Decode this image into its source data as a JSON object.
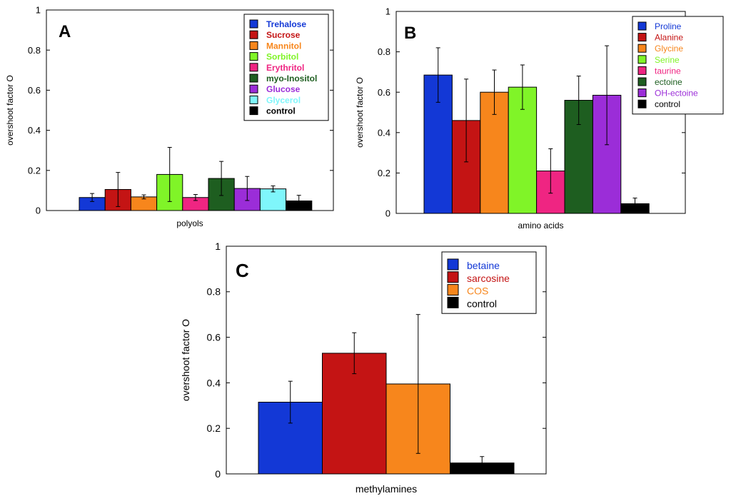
{
  "chart_data": [
    {
      "type": "bar",
      "panel": "A",
      "title": "",
      "xlabel": "polyols",
      "ylabel": "overshoot factor O",
      "ylim": [
        0,
        1
      ],
      "yticks": [
        "0",
        "0.2",
        "0.4",
        "0.6",
        "0.8",
        "1"
      ],
      "legend_position": "top-right",
      "series": [
        {
          "name": "Trehalose",
          "value": 0.065,
          "err": 0.02,
          "color": "#1338d6"
        },
        {
          "name": "Sucrose",
          "value": 0.105,
          "err": 0.085,
          "color": "#c41414"
        },
        {
          "name": "Mannitol",
          "value": 0.068,
          "err": 0.01,
          "color": "#f7861c"
        },
        {
          "name": "Sorbitol",
          "value": 0.18,
          "err": 0.135,
          "color": "#80f428"
        },
        {
          "name": "Erythritol",
          "value": 0.065,
          "err": 0.015,
          "color": "#ef2582"
        },
        {
          "name": "myo-Inositol",
          "value": 0.16,
          "err": 0.085,
          "color": "#1e5e20"
        },
        {
          "name": "Glucose",
          "value": 0.11,
          "err": 0.06,
          "color": "#9b2dd8"
        },
        {
          "name": "Glycerol",
          "value": 0.108,
          "err": 0.015,
          "color": "#7ff6fb"
        },
        {
          "name": "control",
          "value": 0.048,
          "err": 0.028,
          "color": "#000000"
        }
      ]
    },
    {
      "type": "bar",
      "panel": "B",
      "title": "",
      "xlabel": "amino acids",
      "ylabel": "overshoot factor O",
      "ylim": [
        0,
        1
      ],
      "yticks": [
        "0",
        "0.2",
        "0.4",
        "0.6",
        "0.8",
        "1"
      ],
      "legend_position": "top-right",
      "series": [
        {
          "name": "Proline",
          "value": 0.685,
          "err": 0.135,
          "color": "#1338d6"
        },
        {
          "name": "Alanine",
          "value": 0.46,
          "err": 0.205,
          "color": "#c41414"
        },
        {
          "name": "Glycine",
          "value": 0.6,
          "err": 0.11,
          "color": "#f7861c"
        },
        {
          "name": "Serine",
          "value": 0.625,
          "err": 0.11,
          "color": "#80f428"
        },
        {
          "name": "taurine",
          "value": 0.21,
          "err": 0.11,
          "color": "#ef2582"
        },
        {
          "name": "ectoine",
          "value": 0.56,
          "err": 0.12,
          "color": "#1e5e20"
        },
        {
          "name": "OH-ectoine",
          "value": 0.585,
          "err": 0.245,
          "color": "#9b2dd8"
        },
        {
          "name": "control",
          "value": 0.048,
          "err": 0.028,
          "color": "#000000"
        }
      ]
    },
    {
      "type": "bar",
      "panel": "C",
      "title": "",
      "xlabel": "methylamines",
      "ylabel": "overshoot factor O",
      "ylim": [
        0,
        1
      ],
      "yticks": [
        "0",
        "0.2",
        "0.4",
        "0.6",
        "0.8",
        "1"
      ],
      "legend_position": "top-right",
      "series": [
        {
          "name": "betaine",
          "value": 0.315,
          "err": 0.092,
          "color": "#1338d6"
        },
        {
          "name": "sarcosine",
          "value": 0.53,
          "err": 0.09,
          "color": "#c41414"
        },
        {
          "name": "COS",
          "value": 0.395,
          "err": 0.305,
          "color": "#f7861c"
        },
        {
          "name": "control",
          "value": 0.048,
          "err": 0.028,
          "color": "#000000"
        }
      ]
    }
  ]
}
